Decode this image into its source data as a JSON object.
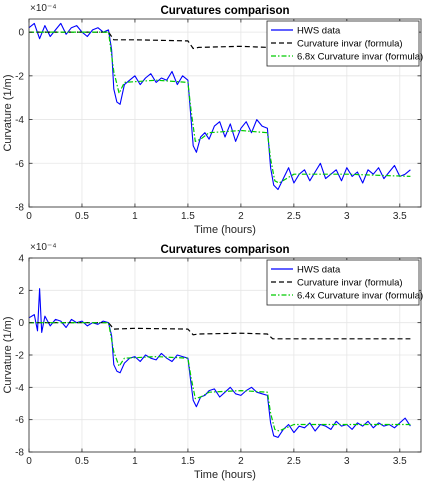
{
  "chart_data": [
    {
      "type": "line",
      "title": "Curvatures comparison",
      "xlabel": "Time (hours)",
      "ylabel": "Curvature (1/m)",
      "exponent": "×10⁻⁴",
      "xlim": [
        0,
        3.7
      ],
      "ylim": [
        -8,
        0.6
      ],
      "xticks": [
        "0",
        "0.5",
        "1",
        "1.5",
        "2",
        "2.5",
        "3",
        "3.5"
      ],
      "yticks": [
        "0",
        "-2",
        "-4",
        "-6",
        "-8"
      ],
      "xtick_values": [
        0,
        0.5,
        1,
        1.5,
        2,
        2.5,
        3,
        3.5
      ],
      "ytick_values": [
        0,
        -2,
        -4,
        -6,
        -8
      ],
      "grid": true,
      "legend_position": "top-right",
      "series": [
        {
          "name": "HWS data",
          "color": "#0000ff",
          "style": "solid",
          "x": [
            0,
            0.05,
            0.1,
            0.15,
            0.2,
            0.25,
            0.3,
            0.35,
            0.4,
            0.45,
            0.5,
            0.55,
            0.6,
            0.65,
            0.7,
            0.75,
            0.78,
            0.8,
            0.83,
            0.86,
            0.9,
            0.95,
            1.0,
            1.05,
            1.1,
            1.15,
            1.2,
            1.25,
            1.3,
            1.35,
            1.4,
            1.45,
            1.5,
            1.53,
            1.55,
            1.58,
            1.62,
            1.66,
            1.7,
            1.75,
            1.8,
            1.85,
            1.9,
            1.95,
            2.0,
            2.05,
            2.1,
            2.15,
            2.2,
            2.25,
            2.28,
            2.31,
            2.35,
            2.4,
            2.45,
            2.5,
            2.55,
            2.6,
            2.65,
            2.7,
            2.75,
            2.8,
            2.85,
            2.9,
            2.95,
            3.0,
            3.05,
            3.1,
            3.15,
            3.2,
            3.25,
            3.3,
            3.35,
            3.4,
            3.45,
            3.5,
            3.55,
            3.6
          ],
          "values": [
            0.2,
            0.4,
            -0.3,
            0.3,
            -0.2,
            0.1,
            0.4,
            -0.1,
            0.2,
            0.3,
            0.0,
            -0.2,
            0.1,
            0.2,
            0.0,
            0.1,
            -0.8,
            -2.6,
            -3.2,
            -3.3,
            -2.4,
            -2.2,
            -2.0,
            -2.4,
            -2.1,
            -1.9,
            -2.3,
            -2.1,
            -2.2,
            -1.8,
            -2.4,
            -2.0,
            -2.2,
            -4.0,
            -5.2,
            -5.5,
            -4.8,
            -4.6,
            -4.9,
            -4.3,
            -4.1,
            -4.8,
            -4.2,
            -5.0,
            -4.4,
            -4.1,
            -4.6,
            -4.0,
            -4.3,
            -4.4,
            -6.2,
            -7.0,
            -7.2,
            -6.7,
            -6.2,
            -6.9,
            -6.5,
            -6.3,
            -6.8,
            -6.4,
            -6.0,
            -6.7,
            -6.5,
            -6.3,
            -6.8,
            -6.2,
            -6.6,
            -6.4,
            -6.9,
            -6.3,
            -6.5,
            -6.2,
            -6.7,
            -6.4,
            -6.1,
            -6.6,
            -6.5,
            -6.3
          ]
        },
        {
          "name": "Curvature invar (formula)",
          "color": "#000000",
          "style": "dashed",
          "x": [
            0,
            0.5,
            0.75,
            0.8,
            1.0,
            1.5,
            1.55,
            1.6,
            2.0,
            2.25,
            2.3,
            2.4,
            3.0,
            3.6
          ],
          "values": [
            0.0,
            0.0,
            0.0,
            -0.35,
            -0.35,
            -0.4,
            -0.75,
            -0.7,
            -0.65,
            -0.7,
            -0.95,
            -0.95,
            -0.95,
            -1.0
          ]
        },
        {
          "name": "6.8x Curvature invar (formula)",
          "color": "#00cc00",
          "style": "dash-dot",
          "x": [
            0,
            0.5,
            0.75,
            0.8,
            0.85,
            0.9,
            1.2,
            1.5,
            1.53,
            1.57,
            1.62,
            1.7,
            2.0,
            2.25,
            2.28,
            2.32,
            2.36,
            2.5,
            3.0,
            3.6
          ],
          "values": [
            0.0,
            0.0,
            0.0,
            -1.8,
            -2.8,
            -2.3,
            -2.2,
            -2.3,
            -3.6,
            -5.0,
            -4.9,
            -4.6,
            -4.5,
            -4.6,
            -5.8,
            -6.8,
            -6.9,
            -6.5,
            -6.5,
            -6.6
          ]
        }
      ]
    },
    {
      "type": "line",
      "title": "Curvatures comparison",
      "xlabel": "Time (hours)",
      "ylabel": "Curvature (1/m)",
      "exponent": "×10⁻⁴",
      "xlim": [
        0,
        3.7
      ],
      "ylim": [
        -8,
        4
      ],
      "xticks": [
        "0",
        "0.5",
        "1",
        "1.5",
        "2",
        "2.5",
        "3",
        "3.5"
      ],
      "yticks": [
        "4",
        "2",
        "0",
        "-2",
        "-4",
        "-6",
        "-8"
      ],
      "xtick_values": [
        0,
        0.5,
        1,
        1.5,
        2,
        2.5,
        3,
        3.5
      ],
      "ytick_values": [
        4,
        2,
        0,
        -2,
        -4,
        -6,
        -8
      ],
      "grid": true,
      "legend_position": "top-right",
      "series": [
        {
          "name": "HWS data",
          "color": "#0000ff",
          "style": "solid",
          "x": [
            0,
            0.05,
            0.08,
            0.1,
            0.12,
            0.15,
            0.2,
            0.25,
            0.3,
            0.35,
            0.4,
            0.45,
            0.5,
            0.55,
            0.6,
            0.65,
            0.7,
            0.75,
            0.78,
            0.8,
            0.83,
            0.86,
            0.9,
            0.95,
            1.0,
            1.05,
            1.1,
            1.15,
            1.2,
            1.25,
            1.3,
            1.35,
            1.4,
            1.45,
            1.5,
            1.53,
            1.55,
            1.58,
            1.62,
            1.66,
            1.7,
            1.75,
            1.8,
            1.85,
            1.9,
            1.95,
            2.0,
            2.05,
            2.1,
            2.15,
            2.2,
            2.25,
            2.28,
            2.31,
            2.35,
            2.4,
            2.45,
            2.5,
            2.55,
            2.6,
            2.65,
            2.7,
            2.75,
            2.8,
            2.85,
            2.9,
            2.95,
            3.0,
            3.05,
            3.1,
            3.15,
            3.2,
            3.25,
            3.3,
            3.35,
            3.4,
            3.45,
            3.5,
            3.55,
            3.6
          ],
          "values": [
            0.3,
            0.5,
            -0.5,
            2.1,
            -0.6,
            0.4,
            -0.2,
            0.2,
            0.1,
            -0.3,
            0.2,
            0.0,
            0.1,
            -0.2,
            0.0,
            -0.1,
            0.1,
            0.0,
            -0.8,
            -2.6,
            -3.0,
            -3.1,
            -2.5,
            -2.2,
            -2.1,
            -2.4,
            -2.0,
            -2.2,
            -2.3,
            -1.9,
            -2.2,
            -2.4,
            -2.0,
            -2.1,
            -2.2,
            -3.8,
            -4.8,
            -5.2,
            -4.6,
            -4.5,
            -4.2,
            -4.1,
            -4.6,
            -4.3,
            -4.0,
            -4.4,
            -4.5,
            -4.2,
            -4.0,
            -4.3,
            -4.4,
            -4.5,
            -6.2,
            -7.0,
            -7.1,
            -6.6,
            -6.3,
            -6.8,
            -6.4,
            -6.5,
            -6.2,
            -6.7,
            -6.3,
            -6.4,
            -6.6,
            -6.1,
            -6.4,
            -6.3,
            -6.6,
            -6.2,
            -6.4,
            -6.1,
            -6.5,
            -6.2,
            -6.4,
            -6.3,
            -6.5,
            -6.2,
            -5.9,
            -6.4
          ]
        },
        {
          "name": "Curvature invar (formula)",
          "color": "#000000",
          "style": "dashed",
          "x": [
            0,
            0.5,
            0.75,
            0.8,
            1.0,
            1.5,
            1.55,
            1.6,
            2.0,
            2.25,
            2.3,
            2.4,
            3.0,
            3.6
          ],
          "values": [
            0.0,
            0.0,
            0.0,
            -0.4,
            -0.35,
            -0.4,
            -0.75,
            -0.7,
            -0.65,
            -0.7,
            -1.0,
            -1.0,
            -1.0,
            -1.0
          ]
        },
        {
          "name": "6.4x Curvature invar (formula)",
          "color": "#00cc00",
          "style": "dash-dot",
          "x": [
            0,
            0.5,
            0.75,
            0.8,
            0.85,
            0.9,
            1.2,
            1.5,
            1.53,
            1.57,
            1.62,
            1.7,
            2.0,
            2.25,
            2.28,
            2.32,
            2.36,
            2.5,
            3.0,
            3.6
          ],
          "values": [
            0.0,
            0.0,
            0.0,
            -1.8,
            -2.7,
            -2.2,
            -2.1,
            -2.2,
            -3.4,
            -4.7,
            -4.6,
            -4.3,
            -4.2,
            -4.3,
            -5.6,
            -6.6,
            -6.7,
            -6.3,
            -6.3,
            -6.3
          ]
        }
      ]
    }
  ]
}
